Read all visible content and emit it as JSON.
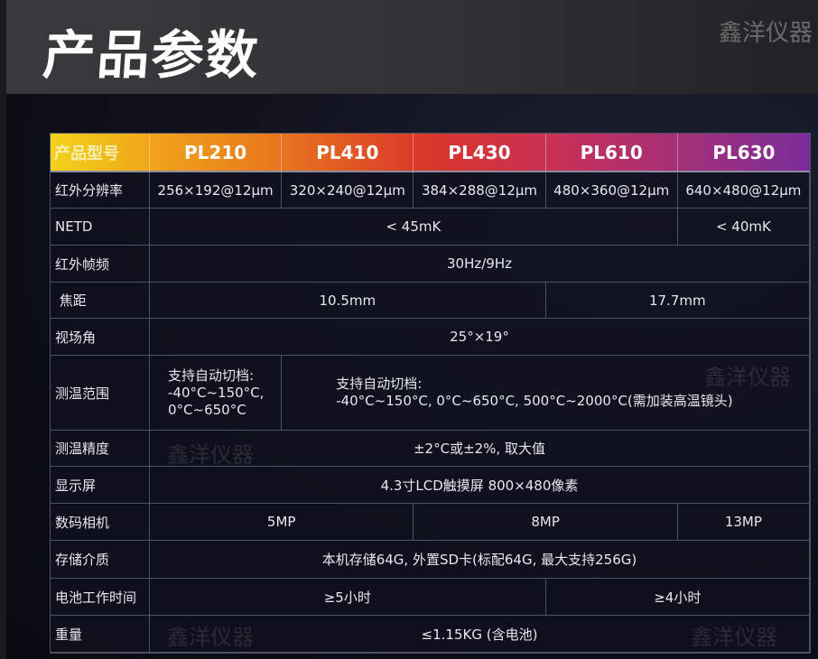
{
  "title": "产品参数",
  "watermark": "鑫洋仪器",
  "header": {
    "label": "产品型号",
    "models": [
      "PL210",
      "PL410",
      "PL430",
      "PL610",
      "PL630"
    ]
  },
  "rows": {
    "resolution": {
      "label": "红外分辨率",
      "values": [
        "256×192@12μm",
        "320×240@12μm",
        "384×288@12μm",
        "480×360@12μm",
        "640×480@12μm"
      ]
    },
    "netd": {
      "label": "NETD",
      "values": [
        "< 45mK",
        "< 40mK"
      ]
    },
    "frame_rate": {
      "label": "红外帧频",
      "value": "30Hz/9Hz"
    },
    "focal": {
      "label": " 焦距",
      "values": [
        "10.5mm",
        "17.7mm"
      ]
    },
    "fov": {
      "label": "视场角",
      "value": "25°×19°"
    },
    "range": {
      "label": "测温范围",
      "pl210": [
        "支持自动切档:",
        "-40°C~150°C,",
        "0°C~650°C"
      ],
      "others": [
        "支持自动切档:",
        "-40°C~150°C, 0°C~650°C, 500°C~2000°C(需加装高温镜头)"
      ]
    },
    "accuracy": {
      "label": "测温精度",
      "value": "±2°C或±2%, 取大值"
    },
    "display": {
      "label": "显示屏",
      "value": "4.3寸LCD触摸屏 800×480像素"
    },
    "camera": {
      "label": "数码相机",
      "values": [
        "5MP",
        "8MP",
        "13MP"
      ]
    },
    "storage": {
      "label": "存储介质",
      "value": "本机存储64G, 外置SD卡(标配64G, 最大支持256G)"
    },
    "battery": {
      "label": "电池工作时间",
      "values": [
        "≥5小时",
        "≥4小时"
      ]
    },
    "weight": {
      "label": "重量",
      "value": "≤1.15KG (含电池)"
    }
  }
}
